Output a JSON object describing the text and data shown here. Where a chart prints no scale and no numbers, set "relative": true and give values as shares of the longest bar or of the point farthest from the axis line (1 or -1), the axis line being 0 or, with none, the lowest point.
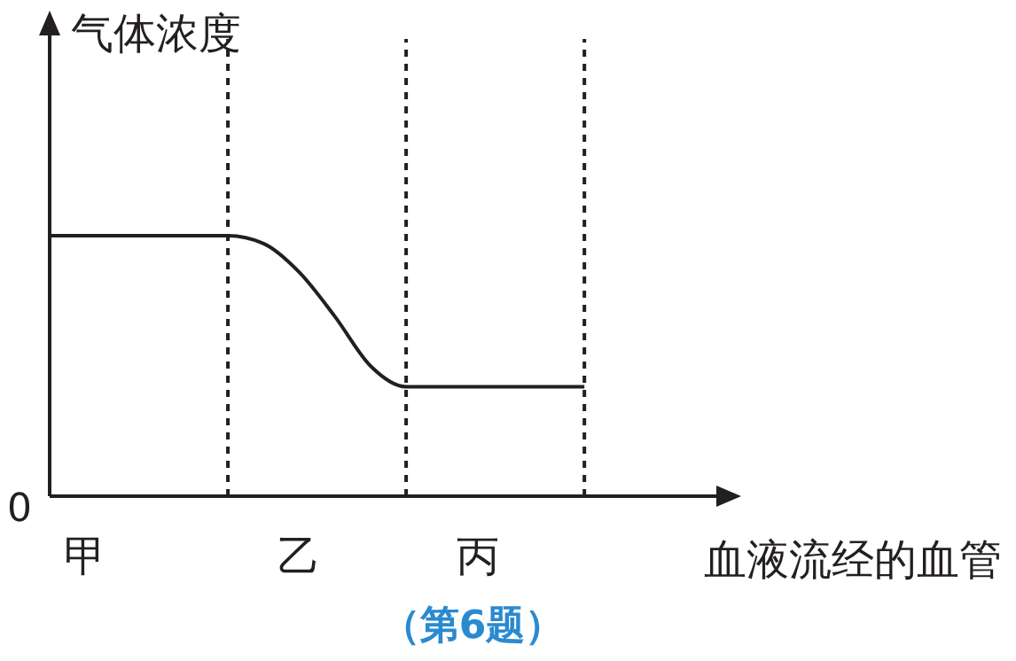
{
  "chart_data": {
    "type": "line",
    "relative": true,
    "ylabel": "气体浓度",
    "xlabel": "血液流经的血管",
    "categories": [
      null,
      "甲",
      null,
      null,
      null,
      null,
      null,
      "乙",
      null,
      null,
      null,
      null,
      "丙",
      null,
      null,
      null,
      null,
      null,
      null,
      null
    ],
    "series": [
      {
        "color": "#231f20",
        "values": [
          1,
          1,
          1,
          1,
          1,
          1,
          0.97,
          0.86,
          0.69,
          0.5,
          0.42,
          0.42,
          0.42,
          0.42,
          0.42,
          0.42,
          null,
          null,
          null,
          null
        ]
      }
    ],
    "grid": "x",
    "annotations": [
      "0",
      "（第6题）"
    ],
    "marker": "none",
    "line_style": "solid"
  }
}
